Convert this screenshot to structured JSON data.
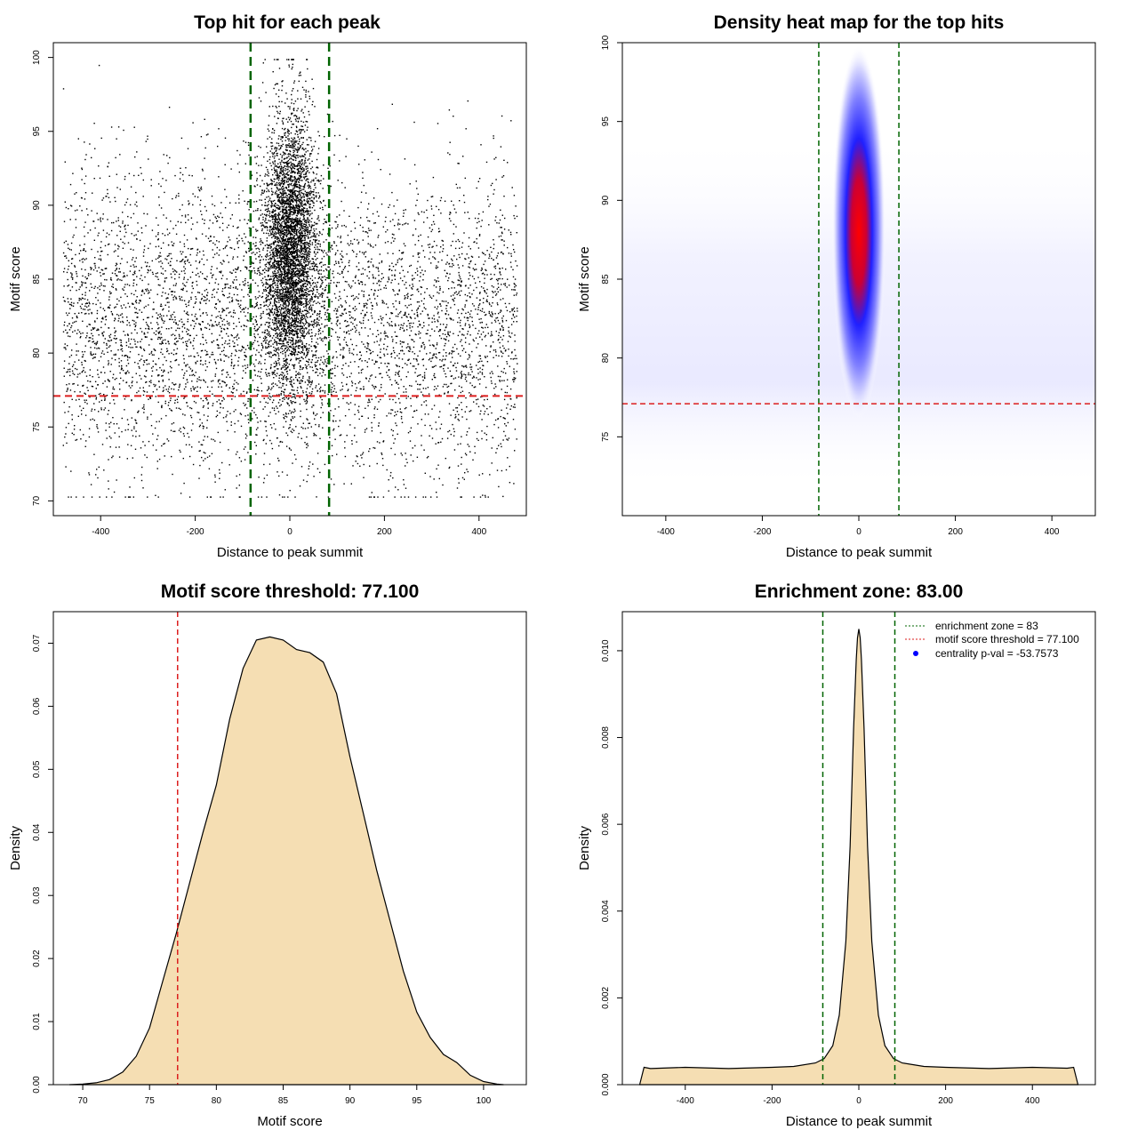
{
  "chart_data": [
    {
      "type": "scatter",
      "title": "Top hit for each peak",
      "xlabel": "Distance to peak summit",
      "ylabel": "Motif score",
      "xlim": [
        -500,
        500
      ],
      "ylim": [
        69,
        101
      ],
      "xticks": [
        "-400",
        "-200",
        "0",
        "200",
        "400"
      ],
      "yticks": [
        "70",
        "75",
        "80",
        "85",
        "90",
        "95",
        "100"
      ],
      "vlines": [
        -83,
        83
      ],
      "hline": 77.1,
      "point_distribution": {
        "background_x_range": [
          -480,
          480
        ],
        "background_y_mean": 82,
        "background_y_sd": 5,
        "central_x_sd": 28,
        "central_y_mean": 87,
        "central_y_sd": 4.5
      },
      "colors": {
        "points": "#000000",
        "vlines": "#006400",
        "hline": "#dc1e1e"
      }
    },
    {
      "type": "heatmap",
      "title": "Density heat map for the top hits",
      "xlabel": "Distance to peak summit",
      "ylabel": "Motif score",
      "xlim": [
        -490,
        490
      ],
      "ylim": [
        70,
        100
      ],
      "xticks": [
        "-400",
        "-200",
        "0",
        "200",
        "400"
      ],
      "yticks": [
        "75",
        "80",
        "85",
        "90",
        "95",
        "100"
      ],
      "vlines": [
        -83,
        83
      ],
      "hline": 77.1,
      "peak": {
        "x": 0,
        "y": 88
      },
      "colors": {
        "low": "#ffffff",
        "mid": "#0000ff",
        "high": "#ff0000",
        "vlines": "#006400",
        "hline": "#dc1e1e"
      }
    },
    {
      "type": "area",
      "title": "Motif score threshold: 77.100",
      "xlabel": "Motif score",
      "ylabel": "Density",
      "xlim": [
        67.8,
        103.2
      ],
      "ylim": [
        0,
        0.075
      ],
      "xticks": [
        "70",
        "75",
        "80",
        "85",
        "90",
        "95",
        "100"
      ],
      "yticks": [
        "0.00",
        "0.01",
        "0.02",
        "0.03",
        "0.04",
        "0.05",
        "0.06",
        "0.07"
      ],
      "vline": 77.1,
      "x": [
        69,
        70,
        71,
        72,
        73,
        74,
        75,
        76,
        77,
        78,
        79,
        80,
        81,
        82,
        83,
        84,
        85,
        86,
        87,
        88,
        89,
        90,
        91,
        92,
        93,
        94,
        95,
        96,
        97,
        98,
        99,
        100,
        101,
        101.5
      ],
      "y": [
        0,
        0.0001,
        0.0003,
        0.0008,
        0.002,
        0.0045,
        0.009,
        0.0165,
        0.024,
        0.032,
        0.04,
        0.0475,
        0.058,
        0.066,
        0.0705,
        0.071,
        0.0705,
        0.069,
        0.0685,
        0.067,
        0.062,
        0.052,
        0.043,
        0.034,
        0.026,
        0.018,
        0.0115,
        0.0075,
        0.0048,
        0.0035,
        0.0015,
        0.0005,
        0.0001,
        0
      ],
      "colors": {
        "fill": "#f5deb3",
        "vline": "#dc1e1e"
      }
    },
    {
      "type": "area",
      "title": "Enrichment zone: 83.00",
      "xlabel": "Distance to peak summit",
      "ylabel": "Density",
      "xlim": [
        -545,
        545
      ],
      "ylim": [
        0,
        0.0109
      ],
      "xticks": [
        "-400",
        "-200",
        "0",
        "200",
        "400"
      ],
      "yticks": [
        "0.000",
        "0.002",
        "0.004",
        "0.006",
        "0.008",
        "0.010"
      ],
      "vlines": [
        -83,
        83
      ],
      "x": [
        -505,
        -495,
        -480,
        -400,
        -300,
        -200,
        -150,
        -100,
        -80,
        -60,
        -45,
        -30,
        -20,
        -12,
        -6,
        -3,
        0,
        3,
        6,
        12,
        20,
        30,
        45,
        60,
        80,
        100,
        150,
        200,
        300,
        400,
        480,
        495,
        505
      ],
      "y": [
        0,
        0.0004,
        0.00037,
        0.0004,
        0.00037,
        0.0004,
        0.00042,
        0.0005,
        0.0006,
        0.0009,
        0.0016,
        0.0033,
        0.0055,
        0.0082,
        0.0098,
        0.0103,
        0.0105,
        0.0103,
        0.0098,
        0.0082,
        0.0055,
        0.0033,
        0.0016,
        0.0009,
        0.0006,
        0.0005,
        0.00042,
        0.0004,
        0.00037,
        0.0004,
        0.00038,
        0.0004,
        0
      ],
      "legend": [
        {
          "label": "enrichment zone = 83",
          "style": "line",
          "color": "#006400"
        },
        {
          "label": "motif score threshold = 77.100",
          "style": "line",
          "color": "#dc1e1e"
        },
        {
          "label": "centrality p-val = -53.7573",
          "style": "point",
          "color": "#0000ff"
        }
      ],
      "colors": {
        "fill": "#f5deb3",
        "vlines": "#006400"
      }
    }
  ]
}
